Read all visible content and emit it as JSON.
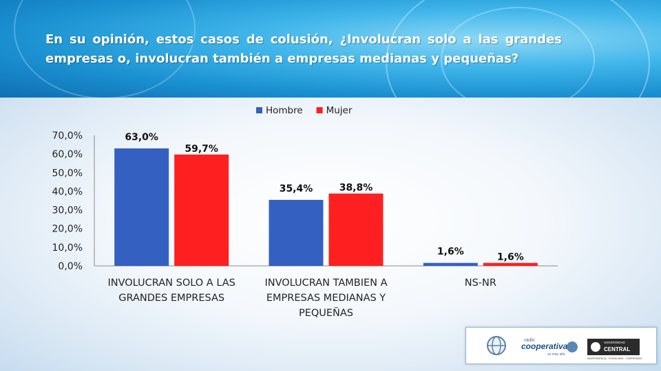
{
  "header": {
    "question": "En su opinión, estos casos de colusión, ¿Involucran solo a las grandes empresas o, involucran también a empresas medianas y pequeñas?"
  },
  "chart_data": {
    "type": "bar",
    "categories": [
      [
        "INVOLUCRAN SOLO A LAS",
        "GRANDES EMPRESAS"
      ],
      [
        "INVOLUCRAN TAMBIEN A",
        "EMPRESAS MEDIANAS Y",
        "PEQUEÑAS"
      ],
      [
        "NS-NR"
      ]
    ],
    "series": [
      {
        "name": "Hombre",
        "values": [
          63.0,
          35.4,
          1.6
        ],
        "labels": [
          "63,0%",
          "35,4%",
          "1,6%"
        ],
        "color": "#3461c1"
      },
      {
        "name": "Mujer",
        "values": [
          59.7,
          38.8,
          1.6
        ],
        "labels": [
          "59,7%",
          "38,8%",
          "1,6%"
        ],
        "color": "#fe2020"
      }
    ],
    "ylim": [
      0,
      70
    ],
    "yticks": [
      "0,0%",
      "10,0%",
      "20,0%",
      "30,0%",
      "40,0%",
      "50,0%",
      "60,0%",
      "70,0%"
    ],
    "legend_position": "top-center",
    "grid": false
  },
  "logos": {
    "radio_top": "radio",
    "radio_name": "cooperativa",
    "radio_tagline": "va más allá",
    "university_top": "UNIVERSIDAD",
    "university_name": "CENTRAL",
    "university_tagline": "INDEPENDENCIA · PLURALISMO · COMPROMISO"
  }
}
